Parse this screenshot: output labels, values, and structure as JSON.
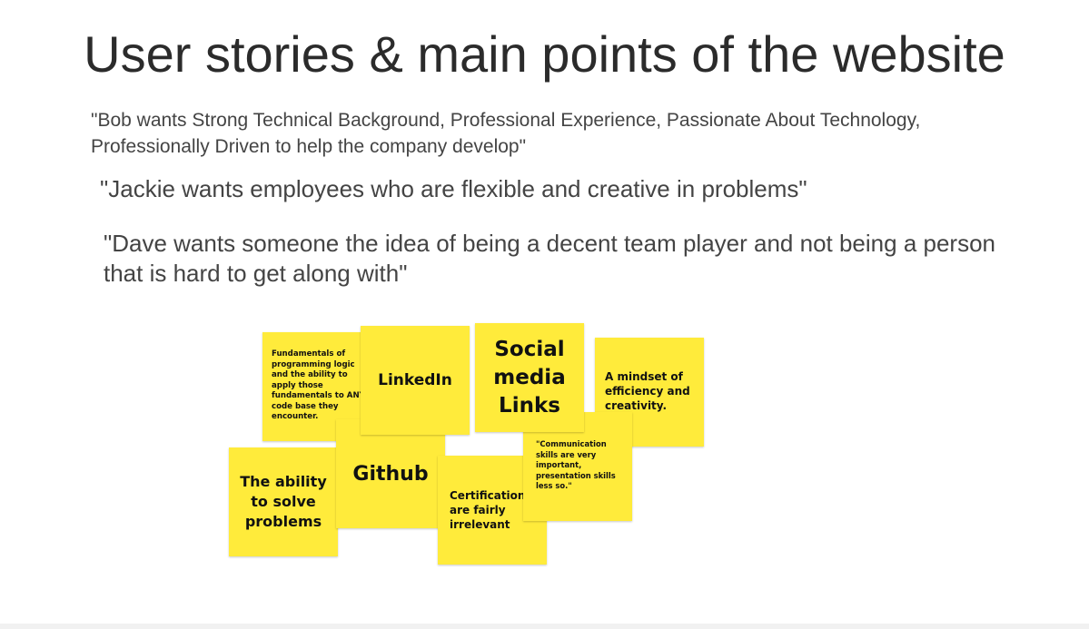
{
  "slide": {
    "title": "User stories & main points of the website",
    "quotes": [
      "\"Bob wants Strong Technical Background, Professional Experience, Passionate About Technology, Professionally Driven to help the company develop\"",
      "\"Jackie wants employees who are flexible and creative in problems\"",
      "\"Dave wants someone the idea of being a decent team player and not being a person that is hard to get along with\""
    ]
  },
  "sticky_notes": {
    "color": "#ffeb3b",
    "fundamentals": "Fundamentals of programming logic and the ability to apply those fundamentals to ANY code base they encounter.",
    "ability": "The ability to solve problems",
    "linkedin": "LinkedIn",
    "github": "Github",
    "social": "Social media Links",
    "mindset": "A mindset of efficiency and creativity.",
    "certifications": "Certifications\nare fairly\nirrelevant",
    "communication": "\"Communication skills are very important, presentation skills less so.\""
  }
}
